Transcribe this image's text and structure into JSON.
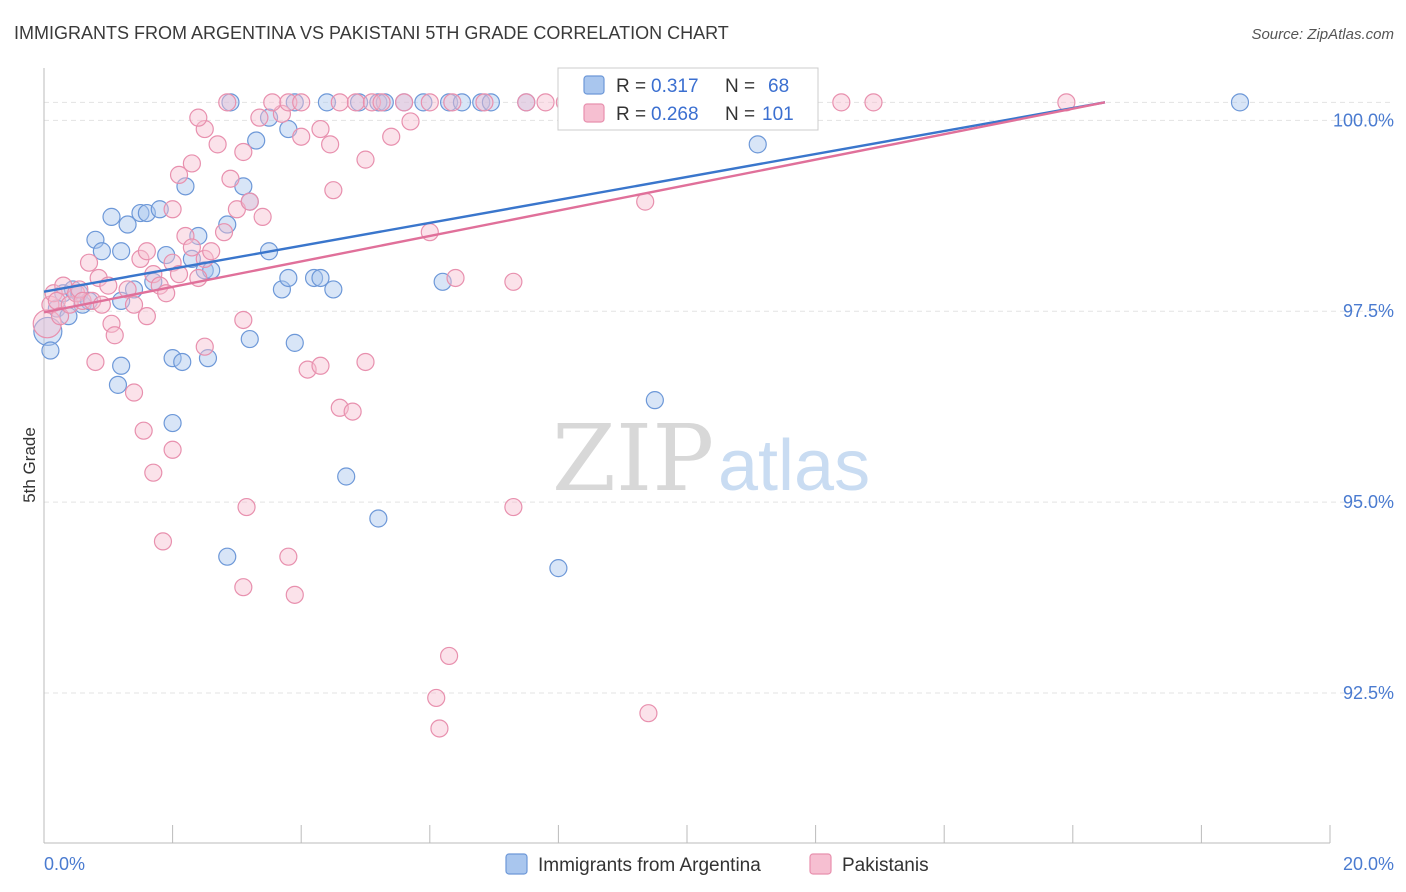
{
  "chart_data": {
    "type": "scatter",
    "title": "IMMIGRANTS FROM ARGENTINA VS PAKISTANI 5TH GRADE CORRELATION CHART",
    "source": "Source: ZipAtlas.com",
    "ylabel": "5th Grade",
    "xlim": [
      0,
      20
    ],
    "ylim": [
      90.3,
      100.45
    ],
    "x_tick_labels": [
      "0.0%",
      "20.0%"
    ],
    "y_ticks": [
      {
        "value": 100.0,
        "label": "100.0%"
      },
      {
        "value": 97.5,
        "label": "97.5%"
      },
      {
        "value": 95.0,
        "label": "95.0%"
      },
      {
        "value": 92.5,
        "label": "92.5%"
      }
    ],
    "watermark": {
      "zip": "ZIP",
      "atlas": "atlas"
    },
    "legend": {
      "r_label": "R =",
      "n_label": "N =",
      "entries": [
        {
          "series": "Immigrants from Argentina",
          "r": "0.317",
          "n": "68"
        },
        {
          "series": "Pakistanis",
          "r": "0.268",
          "n": "101"
        }
      ]
    },
    "colors": {
      "argentina_fill": "#a9c6ee",
      "argentina_stroke": "#6d98d8",
      "argentina_line": "#3a76cc",
      "pakistani_fill": "#f6bfd1",
      "pakistani_stroke": "#e890ae",
      "pakistani_line": "#e0709a",
      "grid": "#e3e3e3",
      "tick_text": "#4a7bd0"
    },
    "series": [
      {
        "name": "Immigrants from Argentina",
        "trend": {
          "x1": 0,
          "y1": 97.52,
          "x2": 16.5,
          "y2": 100.0
        },
        "points": [
          [
            0.06,
            97.0
          ],
          [
            0.1,
            96.75
          ],
          [
            0.2,
            97.3
          ],
          [
            0.3,
            97.5
          ],
          [
            0.38,
            97.2
          ],
          [
            0.45,
            97.55
          ],
          [
            0.55,
            97.5
          ],
          [
            0.6,
            97.35
          ],
          [
            0.7,
            97.4
          ],
          [
            0.8,
            98.2
          ],
          [
            0.9,
            98.05
          ],
          [
            1.2,
            98.05
          ],
          [
            1.05,
            98.5
          ],
          [
            1.3,
            98.4
          ],
          [
            1.5,
            98.55
          ],
          [
            1.6,
            98.55
          ],
          [
            1.8,
            98.6
          ],
          [
            1.4,
            97.55
          ],
          [
            1.7,
            97.65
          ],
          [
            1.9,
            98.0
          ],
          [
            2.0,
            96.65
          ],
          [
            2.15,
            96.6
          ],
          [
            2.5,
            97.8
          ],
          [
            2.3,
            97.95
          ],
          [
            2.6,
            97.8
          ],
          [
            2.2,
            98.9
          ],
          [
            2.4,
            98.25
          ],
          [
            2.85,
            98.4
          ],
          [
            3.1,
            98.9
          ],
          [
            3.2,
            98.7
          ],
          [
            3.5,
            98.05
          ],
          [
            3.7,
            97.55
          ],
          [
            3.8,
            97.7
          ],
          [
            4.2,
            97.7
          ],
          [
            4.3,
            97.7
          ],
          [
            4.5,
            97.55
          ],
          [
            3.9,
            96.85
          ],
          [
            3.2,
            96.9
          ],
          [
            2.55,
            96.65
          ],
          [
            1.2,
            96.55
          ],
          [
            1.15,
            96.3
          ],
          [
            2.0,
            95.8
          ],
          [
            2.85,
            94.05
          ],
          [
            4.7,
            95.1
          ],
          [
            5.2,
            94.55
          ],
          [
            1.2,
            97.4
          ],
          [
            3.3,
            99.5
          ],
          [
            3.5,
            99.8
          ],
          [
            3.8,
            99.65
          ],
          [
            2.9,
            100.0
          ],
          [
            3.9,
            100.0
          ],
          [
            4.4,
            100.0
          ],
          [
            4.9,
            100.0
          ],
          [
            5.2,
            100.0
          ],
          [
            5.3,
            100.0
          ],
          [
            5.6,
            100.0
          ],
          [
            5.9,
            100.0
          ],
          [
            6.3,
            100.0
          ],
          [
            6.5,
            100.0
          ],
          [
            6.8,
            100.0
          ],
          [
            6.95,
            100.0
          ],
          [
            7.5,
            100.0
          ],
          [
            9.6,
            100.0
          ],
          [
            11.1,
            99.45
          ],
          [
            18.6,
            100.0
          ],
          [
            6.2,
            97.65
          ],
          [
            9.5,
            96.1
          ],
          [
            8.0,
            93.9
          ]
        ]
      },
      {
        "name": "Pakistanis",
        "trend": {
          "x1": 0,
          "y1": 97.25,
          "x2": 16.5,
          "y2": 100.0
        },
        "points": [
          [
            0.05,
            97.1
          ],
          [
            0.1,
            97.35
          ],
          [
            0.15,
            97.5
          ],
          [
            0.2,
            97.4
          ],
          [
            0.25,
            97.2
          ],
          [
            0.3,
            97.6
          ],
          [
            0.4,
            97.35
          ],
          [
            0.5,
            97.5
          ],
          [
            0.55,
            97.55
          ],
          [
            0.6,
            97.4
          ],
          [
            0.7,
            97.9
          ],
          [
            0.75,
            97.4
          ],
          [
            0.85,
            97.7
          ],
          [
            0.9,
            97.35
          ],
          [
            1.0,
            97.6
          ],
          [
            1.05,
            97.1
          ],
          [
            1.1,
            96.95
          ],
          [
            1.3,
            97.55
          ],
          [
            1.4,
            97.35
          ],
          [
            1.5,
            97.95
          ],
          [
            1.6,
            98.05
          ],
          [
            1.7,
            97.75
          ],
          [
            1.8,
            97.6
          ],
          [
            1.9,
            97.5
          ],
          [
            2.0,
            97.9
          ],
          [
            2.1,
            97.75
          ],
          [
            2.2,
            98.25
          ],
          [
            2.3,
            98.1
          ],
          [
            2.4,
            97.7
          ],
          [
            2.5,
            97.95
          ],
          [
            2.6,
            98.05
          ],
          [
            2.8,
            98.3
          ],
          [
            3.0,
            98.6
          ],
          [
            3.2,
            98.7
          ],
          [
            3.4,
            98.5
          ],
          [
            1.6,
            97.2
          ],
          [
            2.0,
            98.6
          ],
          [
            2.1,
            99.05
          ],
          [
            2.3,
            99.2
          ],
          [
            2.5,
            99.65
          ],
          [
            2.7,
            99.45
          ],
          [
            2.9,
            99.0
          ],
          [
            3.1,
            99.35
          ],
          [
            3.35,
            99.8
          ],
          [
            3.7,
            99.85
          ],
          [
            4.0,
            99.55
          ],
          [
            4.3,
            99.65
          ],
          [
            4.5,
            98.85
          ],
          [
            5.0,
            99.25
          ],
          [
            5.4,
            99.55
          ],
          [
            5.7,
            99.75
          ],
          [
            6.0,
            98.3
          ],
          [
            6.4,
            97.7
          ],
          [
            7.3,
            97.65
          ],
          [
            0.8,
            96.6
          ],
          [
            1.4,
            96.2
          ],
          [
            1.55,
            95.7
          ],
          [
            1.7,
            95.15
          ],
          [
            2.0,
            95.45
          ],
          [
            1.85,
            94.25
          ],
          [
            2.5,
            96.8
          ],
          [
            3.1,
            97.15
          ],
          [
            4.1,
            96.5
          ],
          [
            4.3,
            96.55
          ],
          [
            4.6,
            96.0
          ],
          [
            4.8,
            95.95
          ],
          [
            5.0,
            96.6
          ],
          [
            3.15,
            94.7
          ],
          [
            3.1,
            93.65
          ],
          [
            3.8,
            94.05
          ],
          [
            3.9,
            93.55
          ],
          [
            6.3,
            92.75
          ],
          [
            6.1,
            92.2
          ],
          [
            6.15,
            91.8
          ],
          [
            7.3,
            94.7
          ],
          [
            9.4,
            92.0
          ],
          [
            9.35,
            98.7
          ],
          [
            2.4,
            99.8
          ],
          [
            2.85,
            100.0
          ],
          [
            3.55,
            100.0
          ],
          [
            3.8,
            100.0
          ],
          [
            4.0,
            100.0
          ],
          [
            4.6,
            100.0
          ],
          [
            4.85,
            100.0
          ],
          [
            5.1,
            100.0
          ],
          [
            5.6,
            100.0
          ],
          [
            6.0,
            100.0
          ],
          [
            6.35,
            100.0
          ],
          [
            6.85,
            100.0
          ],
          [
            7.5,
            100.0
          ],
          [
            7.8,
            100.0
          ],
          [
            8.1,
            100.0
          ],
          [
            8.35,
            100.0
          ],
          [
            8.6,
            100.0
          ],
          [
            9.4,
            100.0
          ],
          [
            11.2,
            100.0
          ],
          [
            12.4,
            100.0
          ],
          [
            12.9,
            100.0
          ],
          [
            15.9,
            100.0
          ],
          [
            4.45,
            99.45
          ],
          [
            5.25,
            100.0
          ]
        ]
      }
    ]
  }
}
